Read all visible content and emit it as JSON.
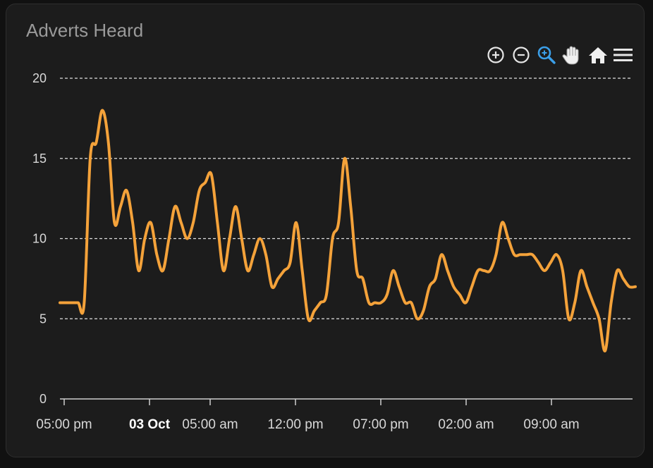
{
  "card": {
    "title": "Adverts Heard"
  },
  "toolbar": {
    "icons": [
      "zoom-in-icon",
      "zoom-out-icon",
      "selection-zoom-icon",
      "pan-hand-icon",
      "reset-home-icon",
      "menu-icon"
    ],
    "active_color": "#3b9fe8",
    "icon_color": "#e6e6e6"
  },
  "colors": {
    "series": "#f4a23a",
    "grid": "#e0e0e0",
    "background": "#1c1c1c"
  },
  "chart_data": {
    "type": "line",
    "title": "Adverts Heard",
    "xlabel": "",
    "ylabel": "",
    "ylim": [
      0,
      20
    ],
    "grid": true,
    "legend": "none",
    "y_ticks": [
      "0",
      "5",
      "10",
      "15",
      "20"
    ],
    "x_ticks": [
      {
        "label": "05:00 pm",
        "bold": false
      },
      {
        "label": "03 Oct",
        "bold": true
      },
      {
        "label": "05:00 am",
        "bold": false
      },
      {
        "label": "12:00 pm",
        "bold": false
      },
      {
        "label": "07:00 pm",
        "bold": false
      },
      {
        "label": "02:00 am",
        "bold": false
      },
      {
        "label": "09:00 am",
        "bold": false
      }
    ],
    "series": [
      {
        "values": [
          6,
          6,
          6,
          6,
          6,
          15,
          16,
          18,
          16,
          11,
          12,
          13,
          11,
          8,
          10,
          11,
          9,
          8,
          10,
          12,
          11,
          10,
          11,
          13,
          13.5,
          14,
          11,
          8,
          10,
          12,
          10,
          8,
          9,
          10,
          9,
          7,
          7.5,
          8,
          8.5,
          11,
          8,
          5,
          5.5,
          6,
          6.5,
          10,
          11,
          15,
          12,
          8,
          7.5,
          6,
          6,
          6,
          6.5,
          8,
          7,
          6,
          6,
          5,
          5.5,
          7,
          7.5,
          9,
          8,
          7,
          6.5,
          6,
          7,
          8,
          8,
          8,
          9,
          11,
          10,
          9,
          9,
          9,
          9,
          8.5,
          8,
          8.5,
          9,
          8,
          5,
          6,
          8,
          7,
          6,
          5,
          3,
          6,
          8,
          7.5,
          7,
          7
        ]
      }
    ]
  }
}
